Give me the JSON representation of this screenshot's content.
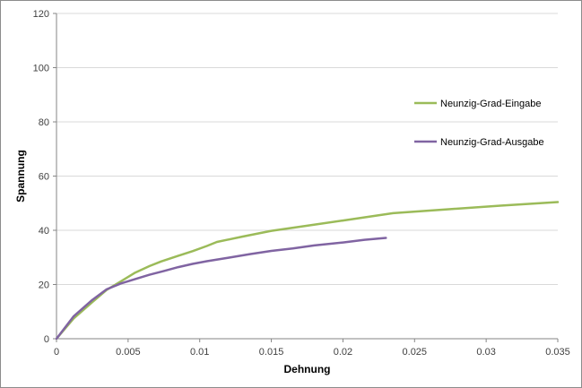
{
  "chart_data": {
    "type": "line",
    "title": "",
    "xlabel": "Dehnung",
    "ylabel": "Spannung",
    "xlim": [
      0,
      0.035
    ],
    "ylim": [
      0,
      120
    ],
    "xticks": [
      0,
      0.005,
      0.01,
      0.015,
      0.02,
      0.025,
      0.03,
      0.035
    ],
    "xtick_labels": [
      "0",
      "0.005",
      "0.01",
      "0.015",
      "0.02",
      "0.025",
      "0.03",
      "0.035"
    ],
    "yticks": [
      0,
      20,
      40,
      60,
      80,
      100,
      120
    ],
    "ytick_labels": [
      "0",
      "20",
      "40",
      "60",
      "80",
      "100",
      "120"
    ],
    "grid": "horizontal",
    "legend_position": "right",
    "series": [
      {
        "name": "Neunzig-Grad-Eingabe",
        "color": "#9bbb59",
        "points": [
          [
            0,
            0
          ],
          [
            0.0012,
            7.5
          ],
          [
            0.0025,
            13.5
          ],
          [
            0.0035,
            18.0
          ],
          [
            0.0045,
            21.2
          ],
          [
            0.0055,
            24.4
          ],
          [
            0.0065,
            26.8
          ],
          [
            0.0073,
            28.5
          ],
          [
            0.0085,
            30.6
          ],
          [
            0.0095,
            32.3
          ],
          [
            0.0105,
            34.2
          ],
          [
            0.0112,
            35.7
          ],
          [
            0.013,
            37.7
          ],
          [
            0.015,
            39.8
          ],
          [
            0.0175,
            41.7
          ],
          [
            0.02,
            43.6
          ],
          [
            0.0235,
            46.3
          ],
          [
            0.0275,
            47.8
          ],
          [
            0.031,
            49.1
          ],
          [
            0.035,
            50.4
          ]
        ]
      },
      {
        "name": "Neunzig-Grad-Ausgabe",
        "color": "#8064a2",
        "points": [
          [
            0,
            0
          ],
          [
            0.0012,
            8.3
          ],
          [
            0.0025,
            14.3
          ],
          [
            0.0035,
            18.2
          ],
          [
            0.0045,
            20.4
          ],
          [
            0.0055,
            22.0
          ],
          [
            0.0065,
            23.6
          ],
          [
            0.0075,
            25.0
          ],
          [
            0.0085,
            26.4
          ],
          [
            0.0095,
            27.6
          ],
          [
            0.0105,
            28.6
          ],
          [
            0.012,
            29.9
          ],
          [
            0.0135,
            31.2
          ],
          [
            0.015,
            32.4
          ],
          [
            0.0165,
            33.3
          ],
          [
            0.018,
            34.4
          ],
          [
            0.02,
            35.5
          ],
          [
            0.0215,
            36.5
          ],
          [
            0.023,
            37.2
          ]
        ]
      }
    ]
  }
}
